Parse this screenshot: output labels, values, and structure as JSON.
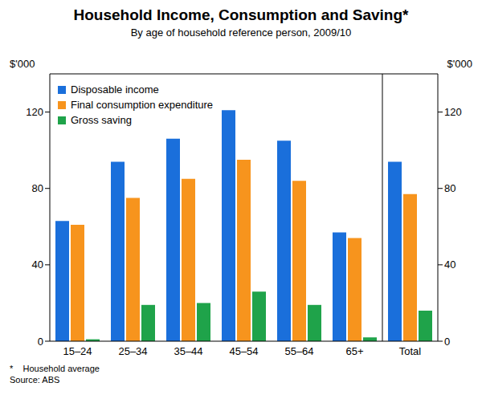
{
  "chart_data": {
    "type": "bar",
    "title": "Household Income, Consumption and Saving*",
    "subtitle": "By age of household reference person, 2009/10",
    "ylabel": "$'000",
    "y2label": "$'000",
    "footnote": "*    Household average",
    "source": "Source: ABS",
    "categories": [
      "15–24",
      "25–34",
      "35–44",
      "45–54",
      "55–64",
      "65+",
      "Total"
    ],
    "series": [
      {
        "name": "Disposable income",
        "color": "#1a6fdb",
        "values": [
          63,
          94,
          106,
          121,
          105,
          57,
          94
        ]
      },
      {
        "name": "Final consumption expenditure",
        "color": "#f7941d",
        "values": [
          61,
          75,
          85,
          95,
          84,
          54,
          77
        ]
      },
      {
        "name": "Gross saving",
        "color": "#1fa34a",
        "values": [
          1,
          19,
          20,
          26,
          19,
          2,
          16
        ]
      }
    ],
    "ylim": [
      0,
      140
    ],
    "yticks": [
      0,
      40,
      80,
      120
    ],
    "y2lim": [
      0,
      140
    ],
    "y2ticks": [
      0,
      40,
      80,
      120
    ],
    "grid": false,
    "legend": "upper left"
  }
}
